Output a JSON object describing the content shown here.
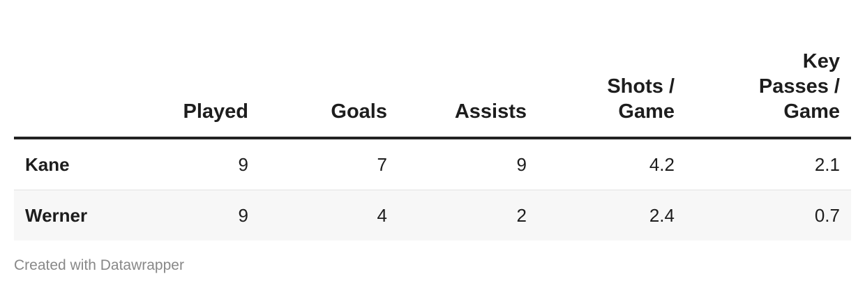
{
  "chart_data": {
    "type": "table",
    "columns": [
      "",
      "Played",
      "Goals",
      "Assists",
      [
        "Shots /",
        "Game"
      ],
      [
        "Key",
        "Passes /",
        "Game"
      ]
    ],
    "rows": [
      {
        "player": "Kane",
        "values": [
          "9",
          "7",
          "9",
          "4.2",
          "2.1"
        ]
      },
      {
        "player": "Werner",
        "values": [
          "9",
          "4",
          "2",
          "2.4",
          "0.7"
        ]
      }
    ]
  },
  "footer": {
    "credit": "Created with Datawrapper"
  }
}
